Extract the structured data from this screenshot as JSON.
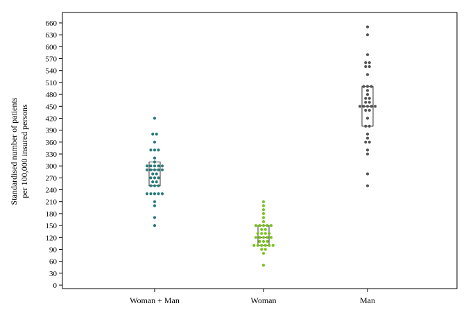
{
  "chart_data": {
    "type": "scatter",
    "subtype": "dot-strip-with-box",
    "title": "",
    "xlabel": "",
    "ylabel_lines": [
      "Standardised number of patients",
      "per 100,000 insured persons"
    ],
    "ylim": [
      0,
      660
    ],
    "yticks": [
      0,
      30,
      60,
      90,
      120,
      150,
      180,
      210,
      240,
      270,
      300,
      330,
      360,
      390,
      420,
      450,
      480,
      510,
      540,
      570,
      600,
      630,
      660
    ],
    "grid": false,
    "legend": "none",
    "categories": [
      "Woman + Man",
      "Woman",
      "Man"
    ],
    "series": [
      {
        "category": "Woman + Man",
        "color": "#2a7a7a",
        "box": {
          "q1": 250,
          "median": 290,
          "q3": 310
        },
        "points": [
          420,
          380,
          380,
          360,
          340,
          340,
          340,
          320,
          310,
          300,
          300,
          300,
          300,
          300,
          290,
          290,
          290,
          290,
          290,
          280,
          280,
          270,
          270,
          270,
          260,
          260,
          250,
          250,
          250,
          230,
          230,
          230,
          230,
          230,
          210,
          200,
          170,
          150
        ]
      },
      {
        "category": "Woman",
        "color": "#7ac21e",
        "box": {
          "q1": 100,
          "median": 120,
          "q3": 150
        },
        "points": [
          210,
          200,
          190,
          180,
          170,
          160,
          150,
          150,
          150,
          150,
          150,
          140,
          140,
          130,
          130,
          130,
          130,
          120,
          120,
          120,
          120,
          120,
          110,
          110,
          110,
          100,
          100,
          100,
          100,
          100,
          100,
          90,
          90,
          80,
          50
        ]
      },
      {
        "category": "Man",
        "color": "#555555",
        "box": {
          "q1": 400,
          "median": 450,
          "q3": 500
        },
        "points": [
          650,
          630,
          580,
          560,
          560,
          550,
          550,
          530,
          500,
          500,
          500,
          490,
          480,
          470,
          470,
          460,
          460,
          450,
          450,
          450,
          450,
          450,
          440,
          440,
          420,
          400,
          400,
          380,
          370,
          360,
          360,
          340,
          330,
          280,
          250
        ]
      }
    ]
  }
}
